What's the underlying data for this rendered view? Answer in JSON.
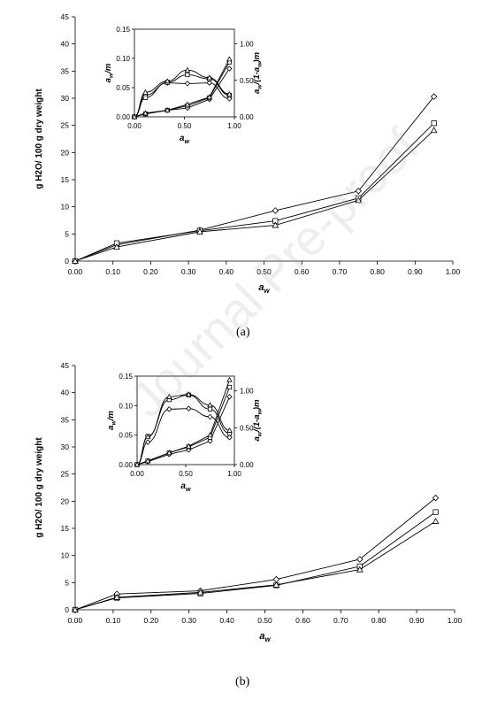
{
  "watermark": "Journal Pre-proof",
  "chart_data": [
    {
      "panel": "(a)",
      "type": "line",
      "xlabel": "a_w",
      "ylabel": "g H2O/ 100 g dry weight",
      "xlim": [
        0,
        1
      ],
      "ylim": [
        0,
        45
      ],
      "x_ticks": [
        "0.00",
        "0.10",
        "0.20",
        "0.30",
        "0.40",
        "0.50",
        "0.60",
        "0.70",
        "0.80",
        "0.90",
        "1.00"
      ],
      "y_ticks": [
        "0",
        "5",
        "10",
        "15",
        "20",
        "25",
        "30",
        "35",
        "40",
        "45"
      ],
      "grid": false,
      "series": [
        {
          "marker": "diamond",
          "x": [
            0,
            0.11,
            0.33,
            0.53,
            0.75,
            0.95
          ],
          "y": [
            0,
            3.0,
            5.7,
            9.3,
            12.9,
            30.3
          ]
        },
        {
          "marker": "square",
          "x": [
            0,
            0.11,
            0.33,
            0.53,
            0.75,
            0.95
          ],
          "y": [
            0,
            3.3,
            5.6,
            7.4,
            11.6,
            25.4
          ]
        },
        {
          "marker": "triangle",
          "x": [
            0,
            0.11,
            0.33,
            0.53,
            0.75,
            0.95
          ],
          "y": [
            0,
            2.6,
            5.4,
            6.6,
            11.2,
            24.1
          ]
        }
      ],
      "inset": {
        "xlabel": "a_w",
        "ylabel_left": "a_w/m",
        "ylabel_right": "a_w/(1-a_w)m",
        "xlim": [
          0,
          1
        ],
        "ylim_left": [
          0,
          0.15
        ],
        "ylim_right": [
          0,
          1.2
        ],
        "x_ticks": [
          "0.00",
          "0.50",
          "1.00"
        ],
        "y_ticks_left": [
          "0.00",
          "0.05",
          "0.10",
          "0.15"
        ],
        "y_ticks_right": [
          "0.00",
          "0.50",
          "1.00"
        ],
        "series": [
          {
            "marker": "diamond",
            "axis": "left",
            "x": [
              0.11,
              0.33,
              0.53,
              0.75,
              0.95
            ],
            "y": [
              0.037,
              0.058,
              0.057,
              0.058,
              0.031
            ]
          },
          {
            "marker": "square",
            "axis": "left",
            "x": [
              0.11,
              0.33,
              0.53,
              0.75,
              0.95
            ],
            "y": [
              0.033,
              0.059,
              0.072,
              0.065,
              0.037
            ]
          },
          {
            "marker": "triangle",
            "axis": "left",
            "x": [
              0.11,
              0.33,
              0.53,
              0.75,
              0.95
            ],
            "y": [
              0.042,
              0.061,
              0.08,
              0.067,
              0.039
            ]
          },
          {
            "marker": "diamond",
            "axis": "right",
            "x": [
              0.11,
              0.33,
              0.53,
              0.75,
              0.95
            ],
            "y": [
              0.04,
              0.09,
              0.12,
              0.24,
              0.66
            ]
          },
          {
            "marker": "square",
            "axis": "right",
            "x": [
              0.11,
              0.33,
              0.53,
              0.75,
              0.95
            ],
            "y": [
              0.04,
              0.09,
              0.15,
              0.26,
              0.75
            ]
          },
          {
            "marker": "triangle",
            "axis": "right",
            "x": [
              0.11,
              0.33,
              0.53,
              0.75,
              0.95
            ],
            "y": [
              0.05,
              0.09,
              0.17,
              0.27,
              0.79
            ]
          }
        ]
      }
    },
    {
      "panel": "(b)",
      "type": "line",
      "xlabel": "a_w",
      "ylabel": "g H2O/ 100 g dry weight",
      "xlim": [
        0,
        1
      ],
      "ylim": [
        0,
        45
      ],
      "x_ticks": [
        "0.00",
        "0.10",
        "0.20",
        "0.30",
        "0.40",
        "0.50",
        "0.60",
        "0.70",
        "0.80",
        "0.90",
        "1.00"
      ],
      "y_ticks": [
        "0",
        "5",
        "10",
        "15",
        "20",
        "25",
        "30",
        "35",
        "40",
        "45"
      ],
      "grid": false,
      "series": [
        {
          "marker": "diamond",
          "x": [
            0,
            0.11,
            0.33,
            0.53,
            0.75,
            0.95
          ],
          "y": [
            0,
            2.9,
            3.5,
            5.6,
            9.3,
            20.6
          ]
        },
        {
          "marker": "square",
          "x": [
            0,
            0.11,
            0.33,
            0.53,
            0.75,
            0.95
          ],
          "y": [
            0,
            2.2,
            3.0,
            4.5,
            8.0,
            18.0
          ]
        },
        {
          "marker": "triangle",
          "x": [
            0,
            0.11,
            0.33,
            0.53,
            0.75,
            0.95
          ],
          "y": [
            0,
            2.3,
            3.2,
            4.6,
            7.4,
            16.3
          ]
        }
      ],
      "inset": {
        "xlabel": "a_w",
        "ylabel_left": "a_w/m",
        "ylabel_right": "a_w/(1-a_w)m",
        "xlim": [
          0,
          1
        ],
        "ylim_left": [
          0,
          0.15
        ],
        "ylim_right": [
          0,
          1.2
        ],
        "x_ticks": [
          "0.00",
          "0.50",
          "1.00"
        ],
        "y_ticks_left": [
          "0.00",
          "0.05",
          "0.10",
          "0.15"
        ],
        "y_ticks_right": [
          "0.00",
          "0.50",
          "1.00"
        ],
        "series": [
          {
            "marker": "diamond",
            "axis": "left",
            "x": [
              0.11,
              0.33,
              0.53,
              0.75,
              0.95
            ],
            "y": [
              0.038,
              0.094,
              0.095,
              0.081,
              0.046
            ]
          },
          {
            "marker": "square",
            "axis": "left",
            "x": [
              0.11,
              0.33,
              0.53,
              0.75,
              0.95
            ],
            "y": [
              0.048,
              0.11,
              0.118,
              0.094,
              0.053
            ]
          },
          {
            "marker": "triangle",
            "axis": "left",
            "x": [
              0.11,
              0.33,
              0.53,
              0.75,
              0.95
            ],
            "y": [
              0.047,
              0.115,
              0.119,
              0.101,
              0.058
            ]
          },
          {
            "marker": "diamond",
            "axis": "right",
            "x": [
              0.11,
              0.33,
              0.53,
              0.75,
              0.95
            ],
            "y": [
              0.04,
              0.14,
              0.2,
              0.32,
              0.92
            ]
          },
          {
            "marker": "square",
            "axis": "right",
            "x": [
              0.11,
              0.33,
              0.53,
              0.75,
              0.95
            ],
            "y": [
              0.05,
              0.16,
              0.24,
              0.37,
              1.05
            ]
          },
          {
            "marker": "triangle",
            "axis": "right",
            "x": [
              0.11,
              0.33,
              0.53,
              0.75,
              0.95
            ],
            "y": [
              0.05,
              0.16,
              0.25,
              0.4,
              1.15
            ]
          }
        ]
      }
    }
  ]
}
